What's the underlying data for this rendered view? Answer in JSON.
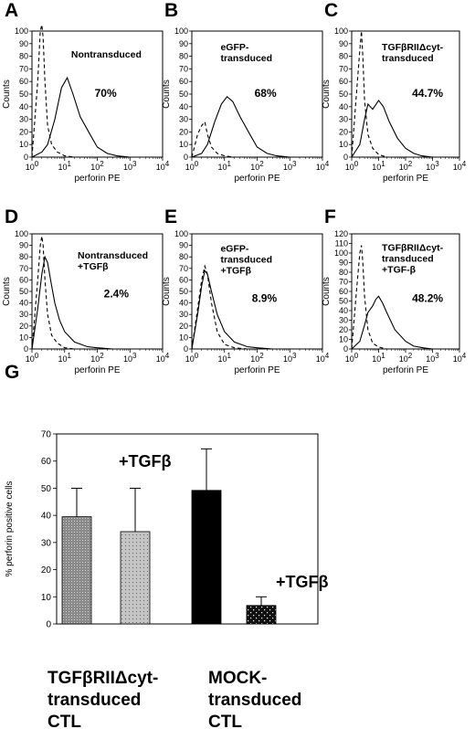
{
  "chart_data": [
    {
      "type": "line",
      "panel": "A",
      "annotation": [
        "Nontransduced"
      ],
      "percent": "70%",
      "xlabel": "perforin PE",
      "ylabel": "Counts",
      "xscale": "log",
      "xlim": [
        1,
        10000
      ],
      "ylim": [
        0,
        100
      ],
      "series": [
        {
          "style": "dashed",
          "x": [
            1,
            1.5,
            1.8,
            2,
            2.2,
            2.5,
            3,
            4,
            6,
            10,
            20,
            50
          ],
          "y": [
            0,
            60,
            100,
            105,
            95,
            60,
            25,
            10,
            4,
            1,
            0,
            0
          ]
        },
        {
          "style": "solid",
          "x": [
            1,
            2,
            3,
            5,
            8,
            12,
            18,
            30,
            60,
            100,
            200,
            400,
            1000
          ],
          "y": [
            0,
            4,
            10,
            30,
            55,
            63,
            50,
            32,
            18,
            8,
            3,
            1,
            0
          ]
        }
      ]
    },
    {
      "type": "line",
      "panel": "B",
      "annotation": [
        "eGFP-",
        "transduced"
      ],
      "percent": "68%",
      "xlabel": "perforin PE",
      "ylabel": "Counts",
      "xscale": "log",
      "xlim": [
        1,
        10000
      ],
      "ylim": [
        0,
        100
      ],
      "series": [
        {
          "style": "dashed",
          "x": [
            1,
            1.5,
            2,
            2.5,
            3,
            4,
            6,
            10,
            20,
            50
          ],
          "y": [
            0,
            18,
            25,
            28,
            18,
            8,
            3,
            1,
            0,
            0
          ]
        },
        {
          "style": "solid",
          "x": [
            1,
            2,
            3,
            5,
            8,
            12,
            18,
            30,
            60,
            100,
            200,
            400,
            1000
          ],
          "y": [
            0,
            3,
            10,
            28,
            42,
            48,
            44,
            32,
            18,
            8,
            3,
            1,
            0
          ]
        }
      ]
    },
    {
      "type": "line",
      "panel": "C",
      "annotation": [
        "TGFβRIIΔcyt-",
        "transduced"
      ],
      "percent": "44.7%",
      "xlabel": "perforin PE",
      "ylabel": "Counts",
      "xscale": "log",
      "xlim": [
        1,
        10000
      ],
      "ylim": [
        0,
        100
      ],
      "series": [
        {
          "style": "dashed",
          "x": [
            1,
            1.5,
            2,
            2.3,
            2.6,
            3,
            4,
            6,
            10,
            20,
            50
          ],
          "y": [
            0,
            50,
            85,
            100,
            80,
            45,
            18,
            7,
            2,
            0,
            0
          ]
        },
        {
          "style": "solid",
          "x": [
            1,
            2,
            3,
            4,
            6,
            10,
            15,
            25,
            50,
            100,
            200,
            400,
            1000
          ],
          "y": [
            0,
            10,
            30,
            42,
            38,
            45,
            40,
            28,
            15,
            7,
            3,
            1,
            0
          ]
        }
      ]
    },
    {
      "type": "line",
      "panel": "D",
      "annotation": [
        "Nontransduced",
        "+TGFβ"
      ],
      "percent": "2.4%",
      "xlabel": "perforin PE",
      "ylabel": "Counts",
      "xscale": "log",
      "xlim": [
        1,
        10000
      ],
      "ylim": [
        0,
        100
      ],
      "series": [
        {
          "style": "dashed",
          "x": [
            1,
            1.5,
            1.8,
            2,
            2.2,
            2.5,
            3,
            4,
            6,
            10,
            20,
            50
          ],
          "y": [
            0,
            60,
            90,
            98,
            90,
            60,
            30,
            12,
            5,
            1,
            0,
            0
          ]
        },
        {
          "style": "solid",
          "x": [
            1,
            1.5,
            2,
            2.5,
            3,
            4,
            5,
            7,
            10,
            20,
            50,
            100,
            300
          ],
          "y": [
            0,
            35,
            65,
            80,
            75,
            55,
            40,
            25,
            15,
            6,
            2,
            1,
            0
          ]
        }
      ]
    },
    {
      "type": "line",
      "panel": "E",
      "annotation": [
        "eGFP-",
        "transduced",
        "+TGFβ"
      ],
      "percent": "8.9%",
      "xlabel": "perforin PE",
      "ylabel": "Counts",
      "xscale": "log",
      "xlim": [
        1,
        10000
      ],
      "ylim": [
        0,
        100
      ],
      "series": [
        {
          "style": "dashed",
          "x": [
            1,
            1.5,
            2,
            2.5,
            3,
            4,
            6,
            10,
            20,
            50
          ],
          "y": [
            0,
            35,
            60,
            72,
            65,
            40,
            15,
            4,
            1,
            0
          ]
        },
        {
          "style": "solid",
          "x": [
            1,
            1.5,
            2,
            2.5,
            3,
            4,
            6,
            10,
            20,
            50,
            100,
            300
          ],
          "y": [
            0,
            30,
            55,
            68,
            65,
            50,
            30,
            15,
            6,
            2,
            1,
            0
          ]
        }
      ]
    },
    {
      "type": "line",
      "panel": "F",
      "annotation": [
        "TGFβRIIΔcyt-",
        "transduced",
        "+TGF-β"
      ],
      "percent": "48.2%",
      "xlabel": "perforin PE",
      "ylabel": "Counts",
      "xscale": "log",
      "xlim": [
        1,
        10000
      ],
      "ylim": [
        0,
        120
      ],
      "series": [
        {
          "style": "dashed",
          "x": [
            1,
            1.5,
            2,
            2.3,
            2.6,
            3,
            4,
            6,
            10,
            20,
            50
          ],
          "y": [
            0,
            60,
            100,
            108,
            90,
            55,
            20,
            6,
            2,
            0,
            0
          ]
        },
        {
          "style": "solid",
          "x": [
            1,
            2,
            3,
            4,
            6,
            8,
            10,
            14,
            20,
            40,
            100,
            200,
            500,
            1000
          ],
          "y": [
            0,
            8,
            25,
            38,
            45,
            52,
            55,
            48,
            38,
            20,
            8,
            3,
            1,
            0
          ]
        }
      ]
    },
    {
      "type": "bar",
      "panel": "G",
      "ylabel": "% perforin positive cells",
      "ylim": [
        0,
        70
      ],
      "categories": [
        "TGFβRIIΔcyt-transduced CTL",
        "TGFβRIIΔcyt-transduced CTL +TGFβ",
        "MOCK-transduced CTL",
        "MOCK-transduced CTL +TGFβ"
      ],
      "values": [
        39.5,
        34,
        49.2,
        6.8
      ],
      "errors": [
        10.5,
        16,
        15.3,
        3.2
      ],
      "annotations": [
        "+TGFβ",
        "+TGFβ"
      ],
      "group_labels": [
        [
          "TGFβRIIΔcyt-",
          "transduced",
          "CTL"
        ],
        [
          "MOCK-",
          "transduced",
          "CTL"
        ]
      ]
    }
  ]
}
